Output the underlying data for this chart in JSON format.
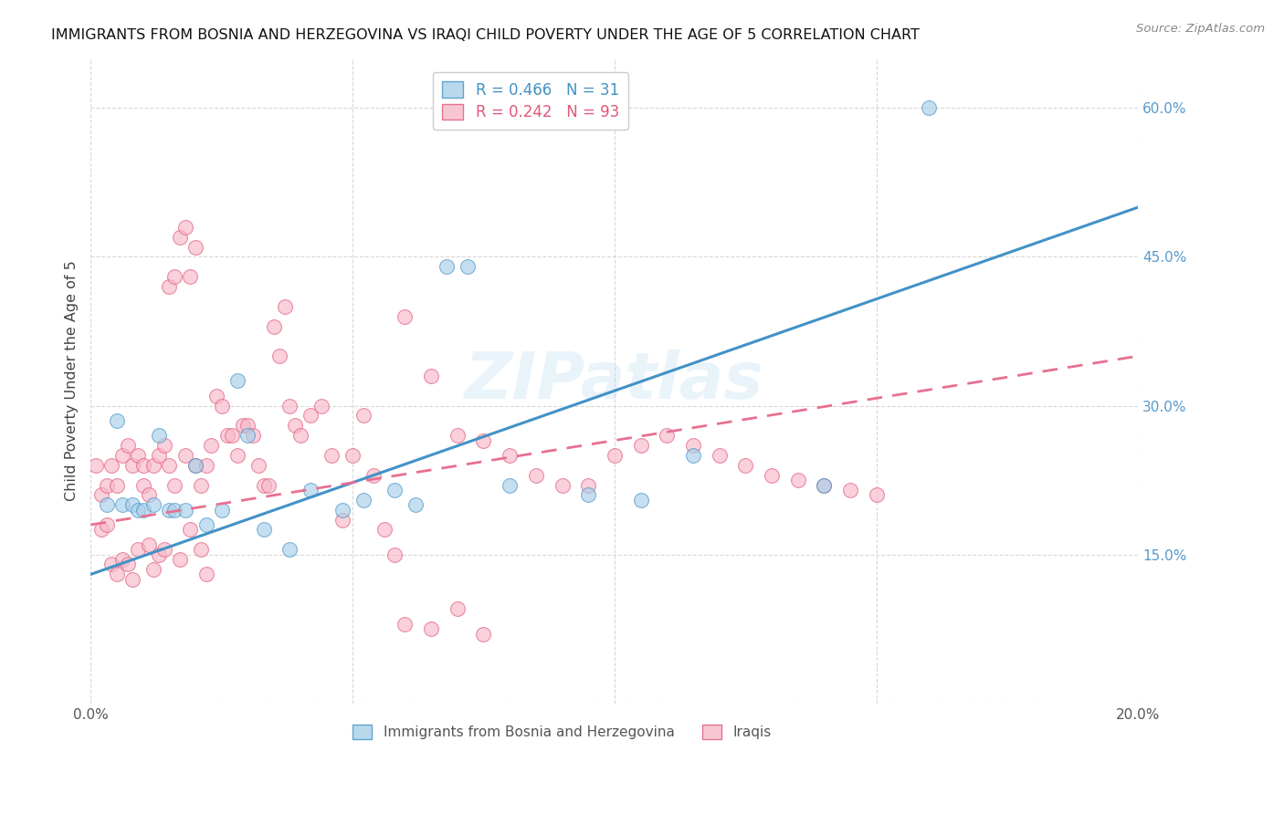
{
  "title": "IMMIGRANTS FROM BOSNIA AND HERZEGOVINA VS IRAQI CHILD POVERTY UNDER THE AGE OF 5 CORRELATION CHART",
  "source": "Source: ZipAtlas.com",
  "ylabel": "Child Poverty Under the Age of 5",
  "y_ticks": [
    0.0,
    0.15,
    0.3,
    0.45,
    0.6
  ],
  "y_tick_labels_right": [
    "",
    "15.0%",
    "30.0%",
    "45.0%",
    "60.0%"
  ],
  "x_range": [
    0.0,
    0.2
  ],
  "y_range": [
    0.0,
    0.65
  ],
  "watermark": "ZIPatlas",
  "blue_fill": "#a8cfe8",
  "blue_edge": "#4292c6",
  "pink_fill": "#f7b8c8",
  "pink_edge": "#e05878",
  "blue_line_color": "#4292c6",
  "pink_line_color": "#e87090",
  "grid_color": "#d8d8d8",
  "right_axis_color": "#5599cc",
  "title_color": "#111111",
  "blue_scatter_x": [
    0.003,
    0.005,
    0.006,
    0.008,
    0.009,
    0.01,
    0.012,
    0.013,
    0.015,
    0.016,
    0.018,
    0.02,
    0.022,
    0.025,
    0.028,
    0.03,
    0.033,
    0.038,
    0.042,
    0.048,
    0.052,
    0.058,
    0.062,
    0.068,
    0.072,
    0.08,
    0.095,
    0.105,
    0.115,
    0.14,
    0.16
  ],
  "blue_scatter_y": [
    0.2,
    0.285,
    0.2,
    0.2,
    0.195,
    0.195,
    0.2,
    0.27,
    0.195,
    0.195,
    0.195,
    0.24,
    0.18,
    0.195,
    0.325,
    0.27,
    0.175,
    0.155,
    0.215,
    0.195,
    0.205,
    0.215,
    0.2,
    0.44,
    0.44,
    0.22,
    0.21,
    0.205,
    0.25,
    0.22,
    0.6
  ],
  "pink_scatter_x": [
    0.001,
    0.002,
    0.002,
    0.003,
    0.003,
    0.004,
    0.004,
    0.005,
    0.005,
    0.006,
    0.006,
    0.007,
    0.007,
    0.008,
    0.008,
    0.009,
    0.009,
    0.01,
    0.01,
    0.011,
    0.011,
    0.012,
    0.012,
    0.013,
    0.013,
    0.014,
    0.014,
    0.015,
    0.015,
    0.016,
    0.016,
    0.017,
    0.017,
    0.018,
    0.018,
    0.019,
    0.019,
    0.02,
    0.02,
    0.021,
    0.021,
    0.022,
    0.022,
    0.023,
    0.024,
    0.025,
    0.026,
    0.027,
    0.028,
    0.029,
    0.03,
    0.031,
    0.032,
    0.033,
    0.034,
    0.035,
    0.036,
    0.037,
    0.038,
    0.039,
    0.04,
    0.042,
    0.044,
    0.046,
    0.048,
    0.05,
    0.052,
    0.054,
    0.056,
    0.058,
    0.06,
    0.065,
    0.07,
    0.075,
    0.08,
    0.085,
    0.09,
    0.095,
    0.1,
    0.105,
    0.11,
    0.115,
    0.12,
    0.125,
    0.13,
    0.135,
    0.14,
    0.145,
    0.15,
    0.06,
    0.065,
    0.07,
    0.075
  ],
  "pink_scatter_y": [
    0.24,
    0.21,
    0.175,
    0.22,
    0.18,
    0.24,
    0.14,
    0.22,
    0.13,
    0.25,
    0.145,
    0.26,
    0.14,
    0.24,
    0.125,
    0.25,
    0.155,
    0.22,
    0.24,
    0.21,
    0.16,
    0.24,
    0.135,
    0.25,
    0.15,
    0.26,
    0.155,
    0.42,
    0.24,
    0.43,
    0.22,
    0.47,
    0.145,
    0.48,
    0.25,
    0.43,
    0.175,
    0.46,
    0.24,
    0.22,
    0.155,
    0.24,
    0.13,
    0.26,
    0.31,
    0.3,
    0.27,
    0.27,
    0.25,
    0.28,
    0.28,
    0.27,
    0.24,
    0.22,
    0.22,
    0.38,
    0.35,
    0.4,
    0.3,
    0.28,
    0.27,
    0.29,
    0.3,
    0.25,
    0.185,
    0.25,
    0.29,
    0.23,
    0.175,
    0.15,
    0.39,
    0.33,
    0.27,
    0.265,
    0.25,
    0.23,
    0.22,
    0.22,
    0.25,
    0.26,
    0.27,
    0.26,
    0.25,
    0.24,
    0.23,
    0.225,
    0.22,
    0.215,
    0.21,
    0.08,
    0.075,
    0.095,
    0.07
  ]
}
